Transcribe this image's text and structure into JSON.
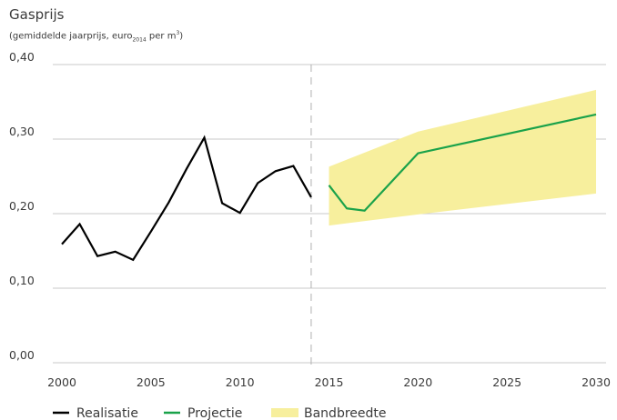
{
  "header": {
    "title": "Gasprijs",
    "subtitle_main": "(gemiddelde jaarprijs, euro",
    "subtitle_sub": "2014",
    "subtitle_mid": " per m",
    "subtitle_sup": "3",
    "subtitle_end": ")"
  },
  "chart_data": {
    "type": "line",
    "title": "Gasprijs",
    "subtitle": "(gemiddelde jaarprijs, euro2014 per m3)",
    "xlabel": "",
    "ylabel": "",
    "xlim": [
      2000,
      2030
    ],
    "ylim": [
      0,
      0.4
    ],
    "x_ticks": [
      2000,
      2005,
      2010,
      2015,
      2020,
      2025,
      2030
    ],
    "x_tick_labels": [
      "2000",
      "2005",
      "2010",
      "2015",
      "2020",
      "2025",
      "2030"
    ],
    "y_ticks": [
      0,
      0.1,
      0.2,
      0.3,
      0.4
    ],
    "y_tick_labels": [
      "0,00",
      "0,10",
      "0,20",
      "0,30",
      "0,40"
    ],
    "grid": "horizontal",
    "divider_year": 2014,
    "legend_position": "bottom",
    "series": [
      {
        "name": "Realisatie",
        "color": "#000000",
        "x": [
          2000,
          2001,
          2002,
          2003,
          2004,
          2005,
          2006,
          2007,
          2008,
          2009,
          2010,
          2011,
          2012,
          2013,
          2014
        ],
        "y": [
          0.159,
          0.186,
          0.143,
          0.149,
          0.138,
          0.176,
          0.215,
          0.26,
          0.302,
          0.214,
          0.201,
          0.241,
          0.257,
          0.264,
          0.222
        ]
      },
      {
        "name": "Projectie",
        "color": "#1aa24a",
        "x": [
          2015,
          2016,
          2017,
          2020,
          2030
        ],
        "y": [
          0.238,
          0.207,
          0.204,
          0.281,
          0.333
        ]
      }
    ],
    "band": {
      "name": "Bandbreedte",
      "color": "#f7ef9d",
      "x": [
        2015,
        2020,
        2030
      ],
      "upper": [
        0.263,
        0.31,
        0.366
      ],
      "lower": [
        0.184,
        0.199,
        0.227
      ]
    }
  }
}
